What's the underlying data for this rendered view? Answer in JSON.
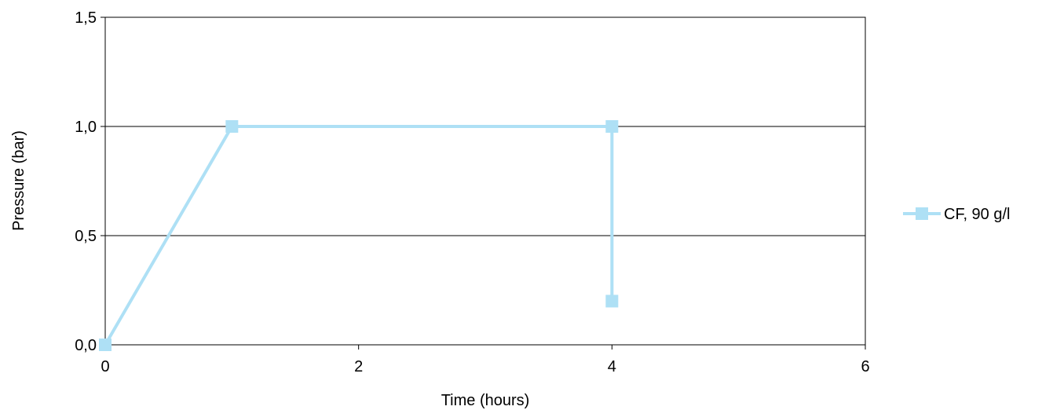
{
  "chart_data": {
    "type": "line",
    "title": "",
    "xlabel": "Time (hours)",
    "ylabel": "Pressure (bar)",
    "xlim": [
      0,
      6
    ],
    "ylim": [
      0,
      1.5
    ],
    "x_ticks": [
      0,
      2,
      4,
      6
    ],
    "x_tick_labels": [
      "0",
      "2",
      "4",
      "6"
    ],
    "y_ticks": [
      0,
      0.5,
      1.0,
      1.5
    ],
    "y_tick_labels": [
      "0,0",
      "0,5",
      "1,0",
      "1,5"
    ],
    "grid": "horizontal",
    "legend": "right",
    "series": [
      {
        "name": "CF, 90 g/l",
        "color": "#aee0f5",
        "marker": "square",
        "x": [
          0,
          1,
          4,
          4
        ],
        "y": [
          0,
          1.0,
          1.0,
          0.2
        ]
      }
    ]
  }
}
